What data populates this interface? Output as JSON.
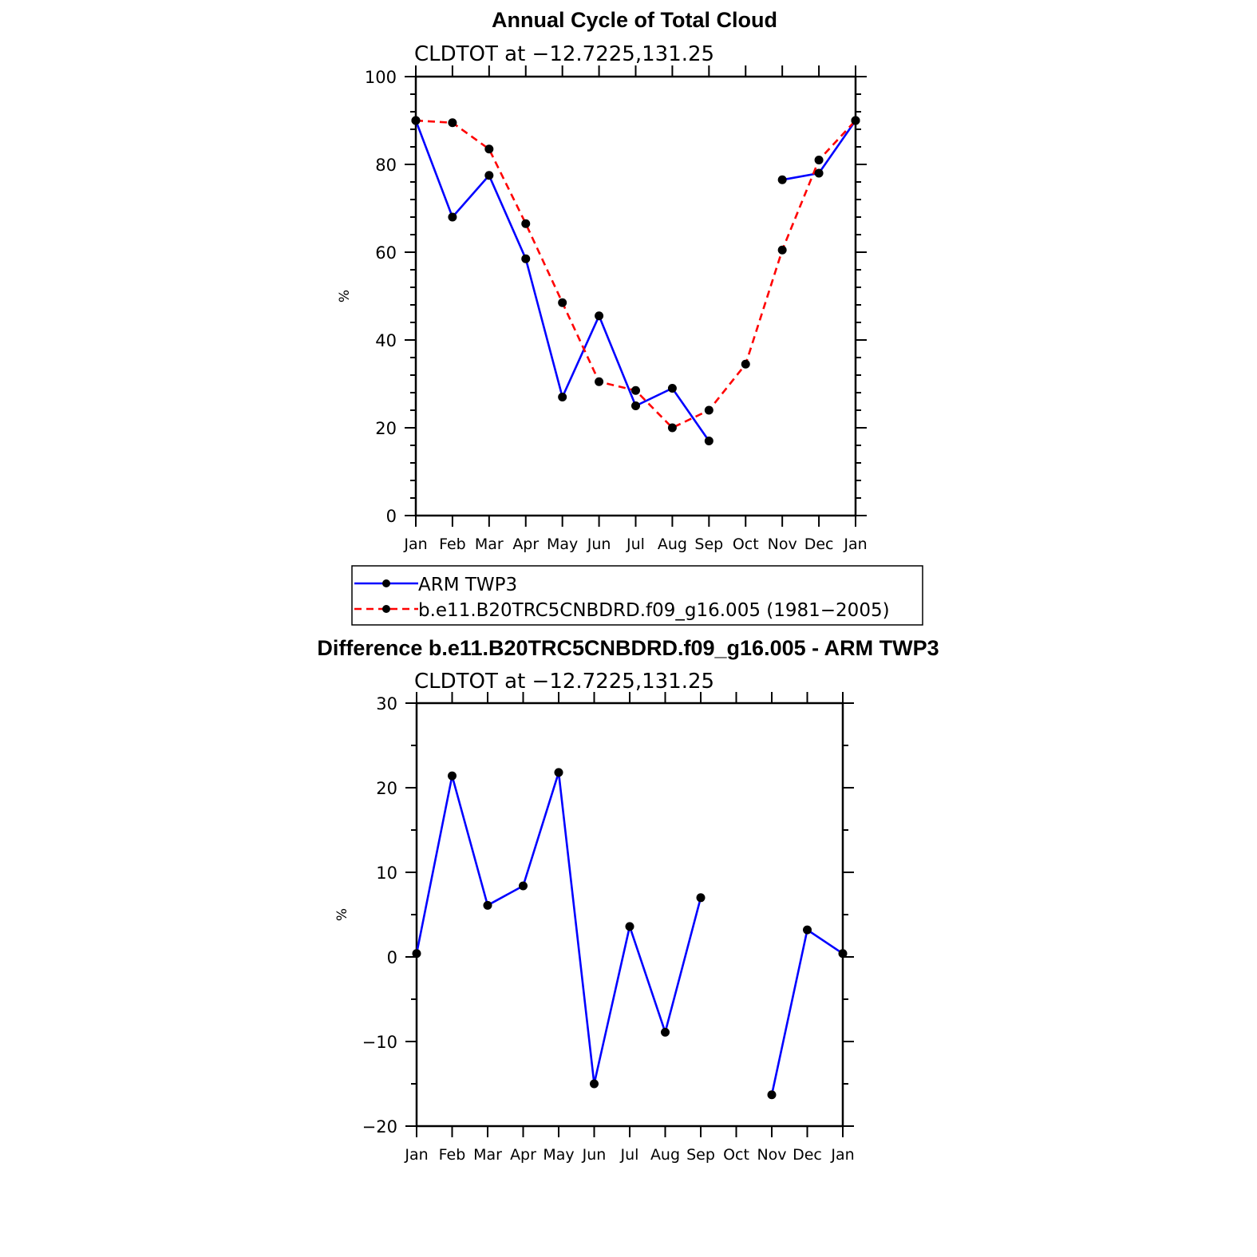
{
  "colors": {
    "obs": "#0000ff",
    "model": "#ff0000",
    "marker": "#000000",
    "axis": "#000000"
  },
  "chart_data": [
    {
      "type": "line",
      "title": "Annual Cycle of Total Cloud",
      "subtitle": "CLDTOT at −12.7225,131.25",
      "ylabel": "%",
      "xlabel": "",
      "categories": [
        "Jan",
        "Feb",
        "Mar",
        "Apr",
        "May",
        "Jun",
        "Jul",
        "Aug",
        "Sep",
        "Oct",
        "Nov",
        "Dec",
        "Jan"
      ],
      "ylim": [
        0,
        100
      ],
      "yticks": [
        0,
        20,
        40,
        60,
        80,
        100
      ],
      "ytick_labels": [
        "0",
        "20",
        "40",
        "60",
        "80",
        "100"
      ],
      "grid": false,
      "legend_position": "below",
      "series": [
        {
          "name": "ARM TWP3",
          "style": "solid",
          "values": [
            90.0,
            68.0,
            77.5,
            58.5,
            27.0,
            45.5,
            25.0,
            29.0,
            17.0,
            null,
            76.5,
            78.0,
            90.0
          ]
        },
        {
          "name": "b.e11.B20TRC5CNBDRD.f09_g16.005 (1981−2005)",
          "style": "dashed",
          "values": [
            90.0,
            89.5,
            83.5,
            66.5,
            48.5,
            30.5,
            28.5,
            20.0,
            24.0,
            34.5,
            60.5,
            81.0,
            90.0
          ]
        }
      ]
    },
    {
      "type": "line",
      "title": "Difference b.e11.B20TRC5CNBDRD.f09_g16.005 - ARM TWP3",
      "subtitle": "CLDTOT at −12.7225,131.25",
      "ylabel": "%",
      "xlabel": "",
      "categories": [
        "Jan",
        "Feb",
        "Mar",
        "Apr",
        "May",
        "Jun",
        "Jul",
        "Aug",
        "Sep",
        "Oct",
        "Nov",
        "Dec",
        "Jan"
      ],
      "ylim": [
        -20,
        30
      ],
      "yticks": [
        -20,
        -10,
        0,
        10,
        20,
        30
      ],
      "ytick_labels": [
        "−20",
        "−10",
        "0",
        "10",
        "20",
        "30"
      ],
      "grid": false,
      "series": [
        {
          "style": "solid",
          "values": [
            0.4,
            21.4,
            6.1,
            8.4,
            21.8,
            -15.0,
            3.6,
            -8.9,
            7.0,
            null,
            -16.3,
            3.2,
            0.4
          ]
        }
      ]
    }
  ]
}
